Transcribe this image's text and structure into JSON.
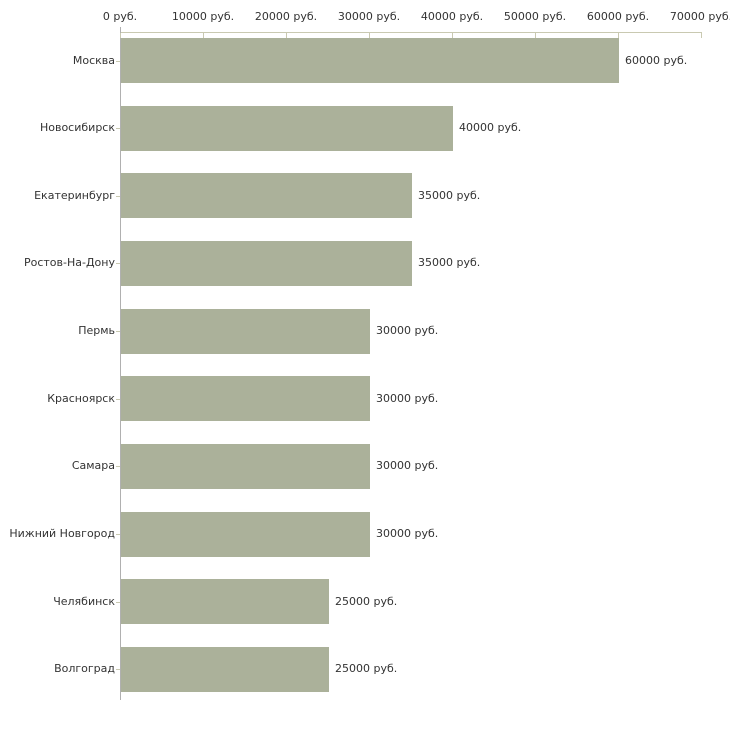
{
  "chart_data": {
    "type": "bar",
    "orientation": "horizontal",
    "unit": "руб.",
    "categories": [
      "Москва",
      "Новосибирск",
      "Екатеринбург",
      "Ростов-На-Дону",
      "Пермь",
      "Красноярск",
      "Самара",
      "Нижний Новгород",
      "Челябинск",
      "Волгоград"
    ],
    "values": [
      60000,
      40000,
      35000,
      35000,
      30000,
      30000,
      30000,
      30000,
      25000,
      25000
    ],
    "value_labels": [
      "60000 руб.",
      "40000 руб.",
      "35000 руб.",
      "35000 руб.",
      "30000 руб.",
      "30000 руб.",
      "30000 руб.",
      "30000 руб.",
      "25000 руб.",
      "25000 руб."
    ],
    "x_ticks": [
      {
        "value": 0,
        "label": "0 руб."
      },
      {
        "value": 10000,
        "label": "10000 руб."
      },
      {
        "value": 20000,
        "label": "20000 руб."
      },
      {
        "value": 30000,
        "label": "30000 руб."
      },
      {
        "value": 40000,
        "label": "40000 руб."
      },
      {
        "value": 50000,
        "label": "50000 руб."
      },
      {
        "value": 60000,
        "label": "60000 руб."
      },
      {
        "value": 70000,
        "label": "70000 руб."
      }
    ],
    "xlim": [
      0,
      70000
    ],
    "grid": false,
    "legend": false,
    "colors": {
      "bar": "#abb19a",
      "x_axis_line": "#c9c9b1",
      "y_axis_line": "#b0b0b0",
      "text": "#333333",
      "background": "#ffffff"
    }
  }
}
